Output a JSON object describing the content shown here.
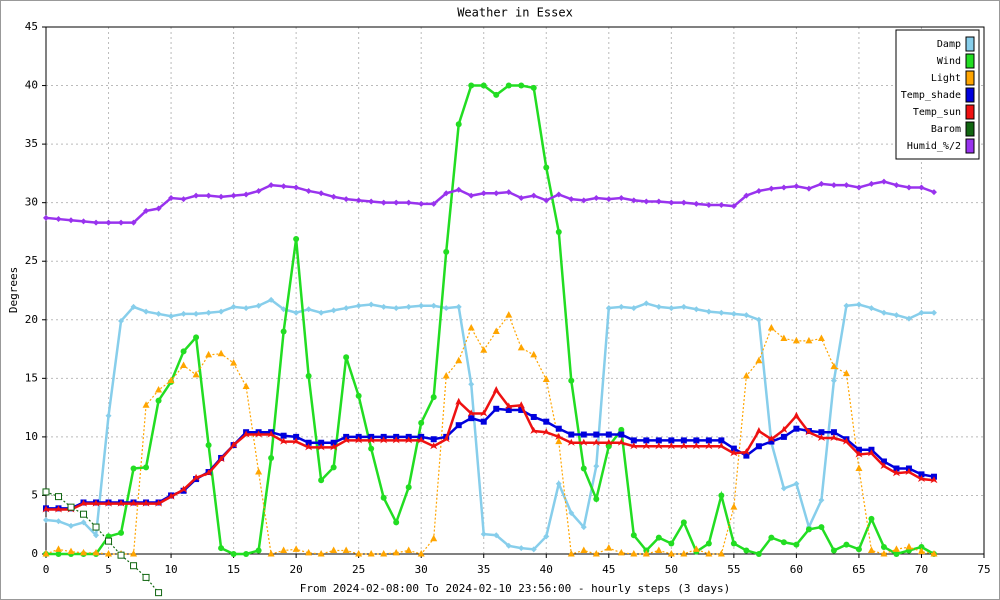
{
  "chart_data": {
    "type": "line",
    "title": "Weather in Essex",
    "y_label": "Degrees",
    "x_label": "From 2024-02-08:00 To 2024-02-10 23:56:00 - hourly steps (3 days)",
    "x": [
      0,
      1,
      2,
      3,
      4,
      5,
      6,
      7,
      8,
      9,
      10,
      11,
      12,
      13,
      14,
      15,
      16,
      17,
      18,
      19,
      20,
      21,
      22,
      23,
      24,
      25,
      26,
      27,
      28,
      29,
      30,
      31,
      32,
      33,
      34,
      35,
      36,
      37,
      38,
      39,
      40,
      41,
      42,
      43,
      44,
      45,
      46,
      47,
      48,
      49,
      50,
      51,
      52,
      53,
      54,
      55,
      56,
      57,
      58,
      59,
      60,
      61,
      62,
      63,
      64,
      65,
      66,
      67,
      68,
      69,
      70,
      71
    ],
    "xlim": [
      0,
      75
    ],
    "xticks": [
      0,
      5,
      10,
      15,
      20,
      25,
      30,
      35,
      40,
      45,
      50,
      55,
      60,
      65,
      70,
      75
    ],
    "ylim": [
      0,
      45
    ],
    "yticks": [
      0,
      5,
      10,
      15,
      20,
      25,
      30,
      35,
      40,
      45
    ],
    "grid": true,
    "legend": "top-right",
    "series": [
      {
        "name": "Damp",
        "color": "#87ceeb",
        "marker": "diamond",
        "dash": false,
        "values": [
          2.9,
          2.8,
          2.4,
          2.7,
          1.6,
          11.8,
          19.9,
          21.1,
          20.7,
          20.5,
          20.3,
          20.5,
          20.5,
          20.6,
          20.7,
          21.1,
          21.0,
          21.2,
          21.7,
          20.9,
          20.6,
          20.9,
          20.6,
          20.8,
          21.0,
          21.2,
          21.3,
          21.1,
          21.0,
          21.1,
          21.2,
          21.2,
          21.0,
          21.1,
          14.5,
          1.7,
          1.6,
          0.7,
          0.5,
          0.4,
          1.5,
          6.0,
          3.5,
          2.3,
          7.5,
          21.0,
          21.1,
          21.0,
          21.4,
          21.1,
          21.0,
          21.1,
          20.9,
          20.7,
          20.6,
          20.5,
          20.4,
          20.0,
          9.5,
          5.6,
          6.0,
          2.3,
          4.6,
          14.8,
          21.2,
          21.3,
          21.0,
          20.6,
          20.4,
          20.1,
          20.6,
          20.6
        ]
      },
      {
        "name": "Wind",
        "color": "#22dd22",
        "marker": "circle",
        "dash": false,
        "values": [
          0,
          0,
          0,
          0,
          0,
          1.5,
          1.8,
          7.3,
          7.4,
          13.1,
          14.7,
          17.3,
          18.5,
          9.3,
          0.5,
          0,
          0,
          0.3,
          8.2,
          19.0,
          26.9,
          15.2,
          6.3,
          7.4,
          16.8,
          13.5,
          9.0,
          4.8,
          2.7,
          5.7,
          11.2,
          13.4,
          25.8,
          36.7,
          40,
          40,
          39.2,
          40,
          40,
          39.8,
          33,
          27.5,
          14.8,
          7.3,
          4.7,
          9.2,
          10.6,
          1.6,
          0.3,
          1.4,
          0.9,
          2.7,
          0.2,
          0.9,
          5.0,
          0.9,
          0.3,
          0,
          1.4,
          1.0,
          0.8,
          2.1,
          2.3,
          0.3,
          0.8,
          0.4,
          3.0,
          0.6,
          0,
          0.3,
          0.6,
          0
        ]
      },
      {
        "name": "Light",
        "color": "#ffa500",
        "marker": "triangle",
        "dash": true,
        "values": [
          0,
          0.4,
          0.2,
          0.1,
          0.1,
          0,
          0,
          0,
          12.7,
          14.0,
          14.8,
          16.1,
          15.3,
          17.0,
          17.1,
          16.3,
          14.3,
          7.0,
          0,
          0.3,
          0.4,
          0.1,
          0,
          0.3,
          0.3,
          0,
          0,
          0,
          0.1,
          0.3,
          0,
          1.3,
          15.2,
          16.5,
          19.3,
          17.4,
          19.0,
          20.4,
          17.6,
          17.0,
          14.9,
          9.6,
          0,
          0.3,
          0,
          0.5,
          0.1,
          0,
          0,
          0.3,
          0,
          0,
          0.4,
          0,
          0,
          4.0,
          15.2,
          16.5,
          19.3,
          18.4,
          18.2,
          18.2,
          18.4,
          16.0,
          15.4,
          7.3,
          0.3,
          0,
          0.4,
          0.6,
          0.2,
          0
        ]
      },
      {
        "name": "Temp_shade",
        "color": "#0000dd",
        "marker": "square",
        "dash": false,
        "values": [
          3.9,
          3.9,
          3.9,
          4.4,
          4.4,
          4.4,
          4.4,
          4.4,
          4.4,
          4.4,
          5.0,
          5.4,
          6.4,
          7.0,
          8.2,
          9.3,
          10.4,
          10.4,
          10.4,
          10.1,
          10.0,
          9.5,
          9.5,
          9.5,
          10.0,
          10.0,
          10.0,
          10.0,
          10.0,
          10.0,
          10.0,
          9.8,
          10.0,
          11.0,
          11.6,
          11.3,
          12.4,
          12.3,
          12.3,
          11.7,
          11.3,
          10.7,
          10.2,
          10.2,
          10.2,
          10.2,
          10.2,
          9.7,
          9.7,
          9.7,
          9.7,
          9.7,
          9.7,
          9.7,
          9.7,
          9.0,
          8.4,
          9.2,
          9.6,
          10.0,
          10.7,
          10.5,
          10.4,
          10.4,
          9.8,
          8.9,
          8.9,
          7.9,
          7.3,
          7.3,
          6.8,
          6.6
        ]
      },
      {
        "name": "Temp_sun",
        "color": "#ee1111",
        "marker": "arrow",
        "dash": false,
        "values": [
          3.8,
          3.8,
          3.8,
          4.3,
          4.3,
          4.3,
          4.3,
          4.3,
          4.3,
          4.3,
          4.9,
          5.5,
          6.5,
          6.9,
          8.1,
          9.3,
          10.2,
          10.2,
          10.2,
          9.6,
          9.6,
          9.1,
          9.1,
          9.1,
          9.7,
          9.7,
          9.7,
          9.7,
          9.7,
          9.7,
          9.7,
          9.2,
          9.8,
          13.0,
          12.0,
          12.0,
          14.0,
          12.6,
          12.7,
          10.5,
          10.4,
          10.0,
          9.5,
          9.5,
          9.5,
          9.5,
          9.5,
          9.2,
          9.2,
          9.2,
          9.2,
          9.2,
          9.2,
          9.2,
          9.2,
          8.6,
          8.7,
          10.5,
          9.8,
          10.6,
          11.8,
          10.4,
          9.9,
          9.9,
          9.6,
          8.5,
          8.6,
          7.5,
          6.9,
          7.0,
          6.4,
          6.3
        ]
      },
      {
        "name": "Barom",
        "color": "#116611",
        "marker": "open-square",
        "dash": true,
        "values": [
          5.3,
          4.9,
          4.0,
          3.4,
          2.3,
          1.1,
          -0.1,
          -1.0,
          -2.0,
          -3.3,
          null,
          null,
          null,
          null,
          null,
          null,
          null,
          null,
          null,
          null,
          null,
          null,
          null,
          null,
          null,
          null,
          null,
          null,
          null,
          null,
          null,
          null,
          null,
          null,
          null,
          null,
          null,
          null,
          null,
          null,
          null,
          null,
          null,
          null,
          null,
          null,
          null,
          null,
          null,
          null,
          null,
          null,
          null,
          null,
          null,
          null,
          null,
          null,
          null,
          null,
          null,
          null,
          null,
          null,
          null,
          null,
          null,
          null,
          null,
          null,
          null,
          null
        ]
      },
      {
        "name": "Humid_%/2",
        "color": "#9933ee",
        "marker": "diamond",
        "dash": false,
        "values": [
          28.7,
          28.6,
          28.5,
          28.4,
          28.3,
          28.3,
          28.3,
          28.3,
          29.3,
          29.5,
          30.4,
          30.3,
          30.6,
          30.6,
          30.5,
          30.6,
          30.7,
          31.0,
          31.5,
          31.4,
          31.3,
          31.0,
          30.8,
          30.5,
          30.3,
          30.2,
          30.1,
          30.0,
          30.0,
          30.0,
          29.9,
          29.9,
          30.8,
          31.1,
          30.6,
          30.8,
          30.8,
          30.9,
          30.4,
          30.6,
          30.2,
          30.7,
          30.3,
          30.2,
          30.4,
          30.3,
          30.4,
          30.2,
          30.1,
          30.1,
          30.0,
          30.0,
          29.9,
          29.8,
          29.8,
          29.7,
          30.6,
          31.0,
          31.2,
          31.3,
          31.4,
          31.2,
          31.6,
          31.5,
          31.5,
          31.3,
          31.6,
          31.8,
          31.5,
          31.3,
          31.3,
          30.9
        ]
      }
    ]
  }
}
